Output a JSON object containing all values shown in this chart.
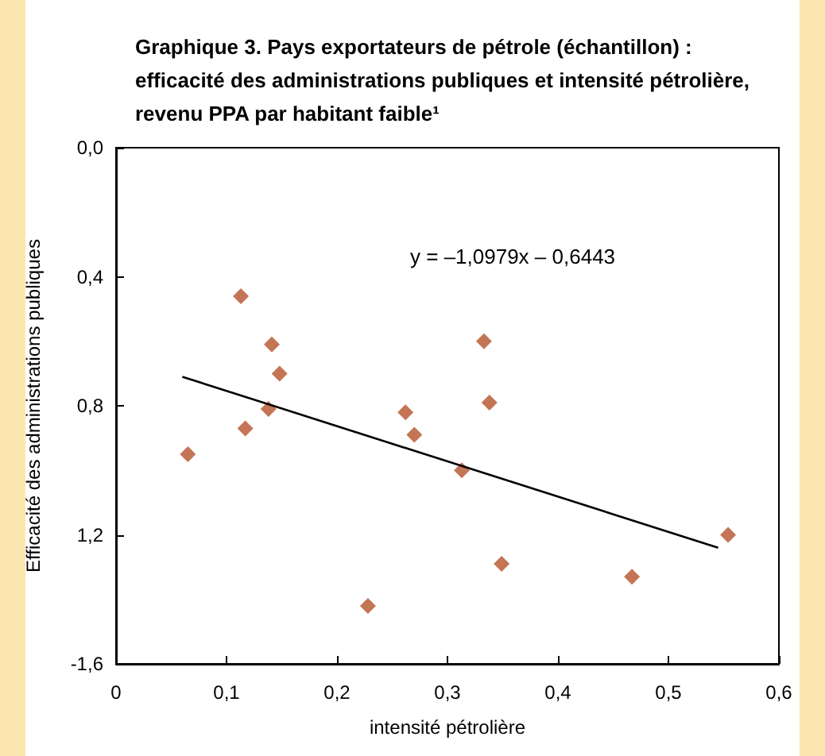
{
  "chart_data": {
    "type": "scatter",
    "title": "Graphique 3. Pays exportateurs de pétrole (échantillon) :\nefficacité des administrations publiques et intensité pétrolière,\nrevenu PPA par habitant faible¹",
    "xlabel": "intensité pétrolière",
    "ylabel": "Efficacité des administrations publiques",
    "xlim": [
      0,
      0.6
    ],
    "xticks": [
      {
        "value": 0,
        "label": "0"
      },
      {
        "value": 0.1,
        "label": "0,1"
      },
      {
        "value": 0.2,
        "label": "0,2"
      },
      {
        "value": 0.3,
        "label": "0,3"
      },
      {
        "value": 0.4,
        "label": "0,4"
      },
      {
        "value": 0.5,
        "label": "0,5"
      },
      {
        "value": 0.6,
        "label": "0,6"
      }
    ],
    "ylim": [
      -1.6,
      0
    ],
    "yticks": [
      {
        "value": -1.6,
        "label": "-1,6"
      },
      {
        "value": -1.2,
        "label": "1,2"
      },
      {
        "value": -0.8,
        "label": "0,8"
      },
      {
        "value": -0.4,
        "label": "0,4"
      },
      {
        "value": 0,
        "label": "0,0"
      }
    ],
    "grid": false,
    "annotations": [
      "y = –1,0979x – 0,6443"
    ],
    "series": [
      {
        "marker": "diamond",
        "color": "#b5532a",
        "x": [
          0.065,
          0.113,
          0.117,
          0.138,
          0.141,
          0.148,
          0.228,
          0.262,
          0.27,
          0.313,
          0.333,
          0.338,
          0.349,
          0.467,
          0.554
        ],
        "values": [
          -0.95,
          -0.46,
          -0.87,
          -0.81,
          -0.61,
          -0.7,
          -1.42,
          -0.82,
          -0.89,
          -1.0,
          -0.6,
          -0.79,
          -1.29,
          -1.33,
          -1.2
        ]
      },
      {
        "type": "line",
        "marker": "none",
        "color": "#000000",
        "x": [
          0.06,
          0.545
        ],
        "values": [
          -0.71,
          -1.24
        ]
      }
    ]
  }
}
